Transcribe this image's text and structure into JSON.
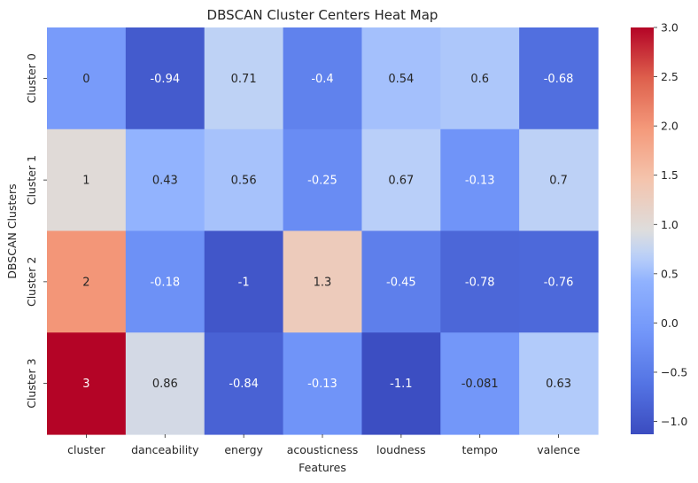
{
  "chart_data": {
    "type": "heatmap",
    "title": "DBSCAN Cluster Centers Heat Map",
    "xlabel": "Features",
    "ylabel": "DBSCAN Clusters",
    "columns": [
      "cluster",
      "danceability",
      "energy",
      "acousticness",
      "loudness",
      "tempo",
      "valence"
    ],
    "rows": [
      "Cluster 0",
      "Cluster 1",
      "Cluster 2",
      "Cluster 3"
    ],
    "values": [
      [
        0,
        -0.94,
        0.71,
        -0.4,
        0.54,
        0.6,
        -0.68
      ],
      [
        1,
        0.43,
        0.56,
        -0.25,
        0.67,
        -0.13,
        0.7
      ],
      [
        2,
        -0.18,
        -1,
        1.3,
        -0.45,
        -0.78,
        -0.76
      ],
      [
        3,
        0.86,
        -0.84,
        -0.13,
        -1.1,
        -0.081,
        0.63
      ]
    ],
    "labels": [
      [
        "0",
        "-0.94",
        "0.71",
        "-0.4",
        "0.54",
        "0.6",
        "-0.68"
      ],
      [
        "1",
        "0.43",
        "0.56",
        "-0.25",
        "0.67",
        "-0.13",
        "0.7"
      ],
      [
        "2",
        "-0.18",
        "-1",
        "1.3",
        "-0.45",
        "-0.78",
        "-0.76"
      ],
      [
        "3",
        "0.86",
        "-0.84",
        "-0.13",
        "-1.1",
        "-0.081",
        "0.63"
      ]
    ],
    "colormap": "coolwarm",
    "colorbar": {
      "min": -1.13,
      "max": 3.0,
      "ticks": [
        -1.0,
        -0.5,
        0.0,
        0.5,
        1.0,
        1.5,
        2.0,
        2.5,
        3.0
      ],
      "tick_labels": [
        "−1.0",
        "−0.5",
        "0.0",
        "0.5",
        "1.0",
        "1.5",
        "2.0",
        "2.5",
        "3.0"
      ]
    }
  }
}
